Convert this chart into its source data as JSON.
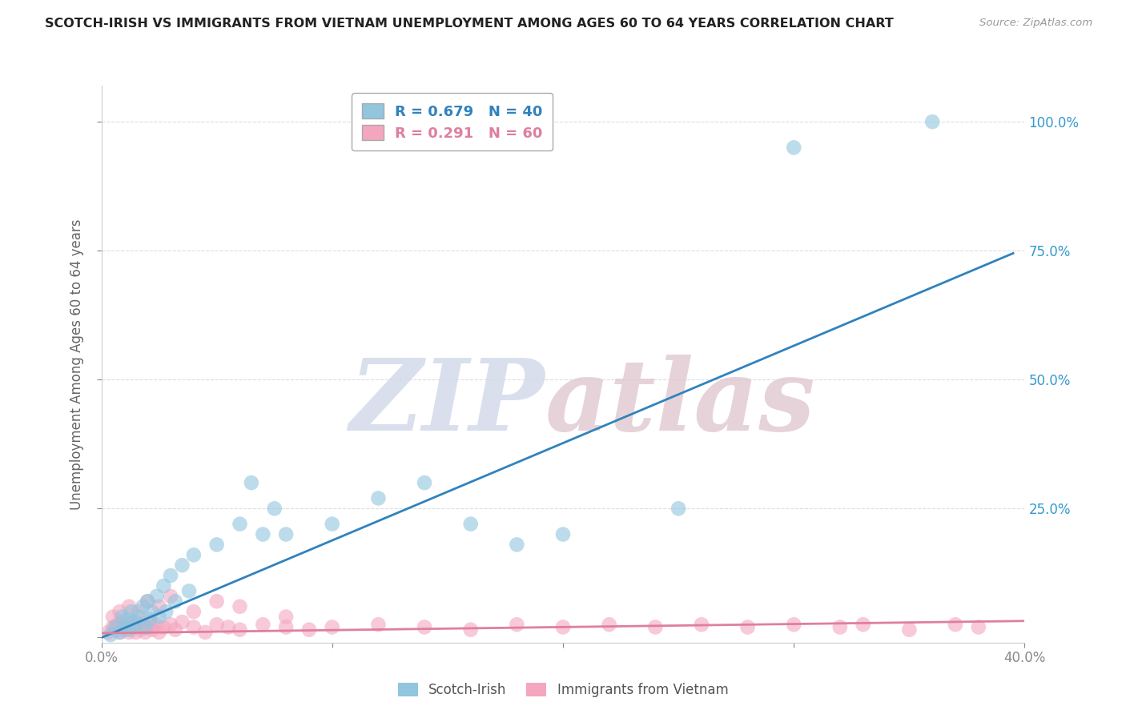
{
  "title": "SCOTCH-IRISH VS IMMIGRANTS FROM VIETNAM UNEMPLOYMENT AMONG AGES 60 TO 64 YEARS CORRELATION CHART",
  "source": "Source: ZipAtlas.com",
  "ylabel": "Unemployment Among Ages 60 to 64 years",
  "xlim": [
    0.0,
    0.4
  ],
  "ylim": [
    -0.01,
    1.07
  ],
  "xticks": [
    0.0,
    0.1,
    0.2,
    0.3,
    0.4
  ],
  "xticklabels": [
    "0.0%",
    "",
    "",
    "",
    "40.0%"
  ],
  "yticks": [
    0.0,
    0.25,
    0.5,
    0.75,
    1.0
  ],
  "yticklabels_right": [
    "",
    "25.0%",
    "50.0%",
    "75.0%",
    "100.0%"
  ],
  "watermark_zip": "ZIP",
  "watermark_atlas": "atlas",
  "blue_color": "#92c5de",
  "blue_line_color": "#3182bd",
  "pink_color": "#f4a6be",
  "pink_line_color": "#de7fa0",
  "legend1_r": "0.679",
  "legend1_n": "40",
  "legend2_r": "0.291",
  "legend2_n": "60",
  "blue_scatter_x": [
    0.004,
    0.006,
    0.008,
    0.009,
    0.01,
    0.011,
    0.012,
    0.013,
    0.014,
    0.015,
    0.016,
    0.018,
    0.019,
    0.02,
    0.021,
    0.022,
    0.024,
    0.025,
    0.027,
    0.028,
    0.03,
    0.032,
    0.035,
    0.038,
    0.04,
    0.05,
    0.06,
    0.065,
    0.07,
    0.075,
    0.08,
    0.1,
    0.12,
    0.14,
    0.16,
    0.18,
    0.2,
    0.25,
    0.3,
    0.36
  ],
  "blue_scatter_y": [
    0.005,
    0.02,
    0.01,
    0.04,
    0.02,
    0.035,
    0.015,
    0.05,
    0.02,
    0.03,
    0.04,
    0.06,
    0.02,
    0.07,
    0.035,
    0.05,
    0.08,
    0.04,
    0.1,
    0.05,
    0.12,
    0.07,
    0.14,
    0.09,
    0.16,
    0.18,
    0.22,
    0.3,
    0.2,
    0.25,
    0.2,
    0.22,
    0.27,
    0.3,
    0.22,
    0.18,
    0.2,
    0.25,
    0.95,
    1.0
  ],
  "pink_scatter_x": [
    0.003,
    0.005,
    0.006,
    0.007,
    0.008,
    0.009,
    0.01,
    0.011,
    0.012,
    0.013,
    0.014,
    0.015,
    0.016,
    0.017,
    0.018,
    0.019,
    0.02,
    0.021,
    0.022,
    0.024,
    0.025,
    0.027,
    0.03,
    0.032,
    0.035,
    0.04,
    0.045,
    0.05,
    0.055,
    0.06,
    0.07,
    0.08,
    0.09,
    0.1,
    0.12,
    0.14,
    0.16,
    0.18,
    0.2,
    0.22,
    0.24,
    0.26,
    0.28,
    0.3,
    0.32,
    0.33,
    0.35,
    0.37,
    0.38,
    0.005,
    0.008,
    0.012,
    0.016,
    0.02,
    0.025,
    0.03,
    0.04,
    0.05,
    0.06,
    0.08
  ],
  "pink_scatter_y": [
    0.01,
    0.02,
    0.015,
    0.025,
    0.01,
    0.03,
    0.015,
    0.025,
    0.01,
    0.03,
    0.02,
    0.01,
    0.025,
    0.015,
    0.02,
    0.01,
    0.02,
    0.03,
    0.015,
    0.025,
    0.01,
    0.02,
    0.025,
    0.015,
    0.03,
    0.02,
    0.01,
    0.025,
    0.02,
    0.015,
    0.025,
    0.02,
    0.015,
    0.02,
    0.025,
    0.02,
    0.015,
    0.025,
    0.02,
    0.025,
    0.02,
    0.025,
    0.02,
    0.025,
    0.02,
    0.025,
    0.015,
    0.025,
    0.02,
    0.04,
    0.05,
    0.06,
    0.05,
    0.07,
    0.06,
    0.08,
    0.05,
    0.07,
    0.06,
    0.04
  ],
  "blue_line_x": [
    -0.005,
    0.395
  ],
  "blue_line_y": [
    -0.01,
    0.745
  ],
  "pink_line_x": [
    -0.005,
    0.4
  ],
  "pink_line_y": [
    0.008,
    0.032
  ],
  "grid_color": "#dddddd",
  "bg_color": "#ffffff",
  "tick_color": "#888888",
  "label_color": "#3399cc"
}
